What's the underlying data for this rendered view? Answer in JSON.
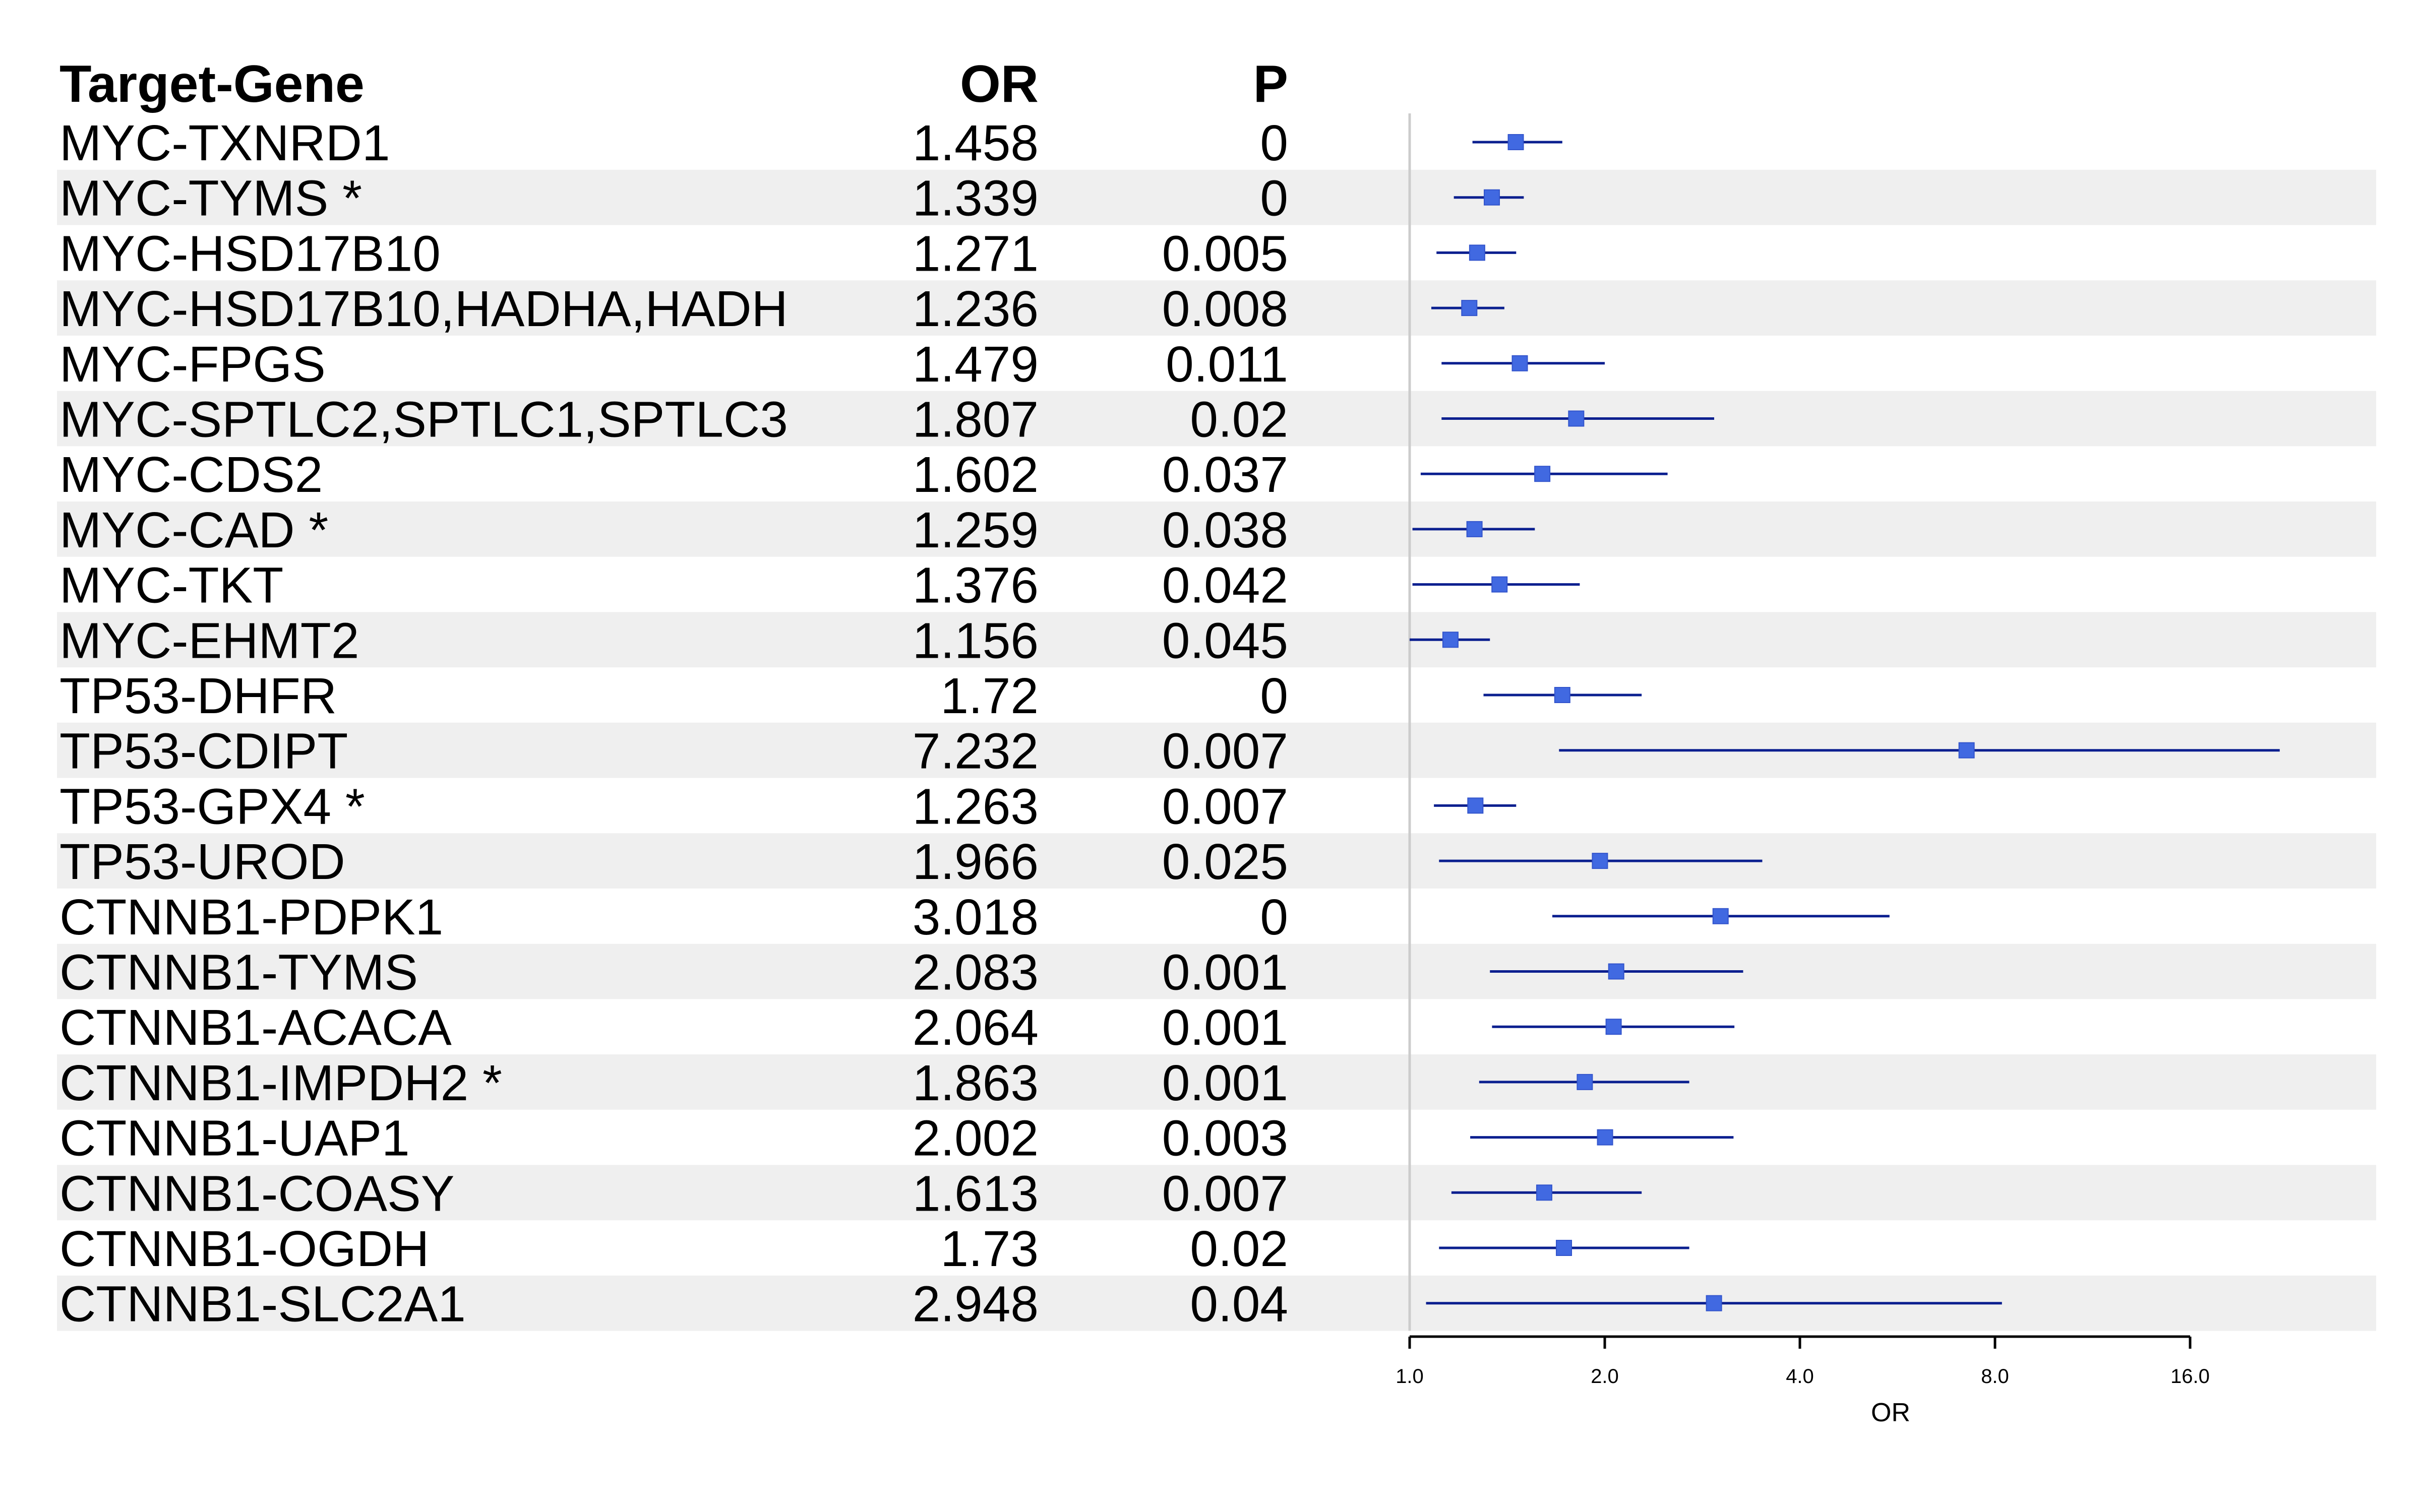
{
  "headers": {
    "label": "Target-Gene",
    "or": "OR",
    "p": "P"
  },
  "chart_data": {
    "type": "forest",
    "x_scale": "log2",
    "xlim": [
      1.0,
      22.0
    ],
    "xlabel": "OR",
    "ticks": [
      1.0,
      2.0,
      4.0,
      8.0,
      16.0
    ],
    "tick_labels": [
      "1.0",
      "2.0",
      "4.0",
      "8.0",
      "16.0"
    ],
    "reference_line": 1.0,
    "colors": {
      "point": "#4169E1",
      "ci": "#0A1F8F",
      "stripe": "#EFEFEF",
      "ref": "#CCCCCC"
    },
    "rows": [
      {
        "label": "MYC-TXNRD1",
        "or_text": "1.458",
        "p_text": "0",
        "or": 1.458,
        "lo": 1.25,
        "hi": 1.72
      },
      {
        "label": "MYC-TYMS *",
        "or_text": "1.339",
        "p_text": "0",
        "or": 1.339,
        "lo": 1.17,
        "hi": 1.5
      },
      {
        "label": "MYC-HSD17B10",
        "or_text": "1.271",
        "p_text": "0.005",
        "or": 1.271,
        "lo": 1.1,
        "hi": 1.46
      },
      {
        "label": "MYC-HSD17B10,HADHA,HADH",
        "or_text": "1.236",
        "p_text": "0.008",
        "or": 1.236,
        "lo": 1.08,
        "hi": 1.4
      },
      {
        "label": "MYC-FPGS",
        "or_text": "1.479",
        "p_text": "0.011",
        "or": 1.479,
        "lo": 1.12,
        "hi": 2.0
      },
      {
        "label": "MYC-SPTLC2,SPTLC1,SPTLC3",
        "or_text": "1.807",
        "p_text": "0.02",
        "or": 1.807,
        "lo": 1.12,
        "hi": 2.95
      },
      {
        "label": "MYC-CDS2",
        "or_text": "1.602",
        "p_text": "0.037",
        "or": 1.602,
        "lo": 1.04,
        "hi": 2.5
      },
      {
        "label": "MYC-CAD *",
        "or_text": "1.259",
        "p_text": "0.038",
        "or": 1.259,
        "lo": 1.01,
        "hi": 1.56
      },
      {
        "label": "MYC-TKT",
        "or_text": "1.376",
        "p_text": "0.042",
        "or": 1.376,
        "lo": 1.01,
        "hi": 1.83
      },
      {
        "label": "MYC-EHMT2",
        "or_text": "1.156",
        "p_text": "0.045",
        "or": 1.156,
        "lo": 1.0,
        "hi": 1.33
      },
      {
        "label": "TP53-DHFR",
        "or_text": "1.72",
        "p_text": "0",
        "or": 1.72,
        "lo": 1.3,
        "hi": 2.28
      },
      {
        "label": "TP53-CDIPT",
        "or_text": "7.232",
        "p_text": "0.007",
        "or": 7.232,
        "lo": 1.7,
        "hi": 22.0
      },
      {
        "label": "TP53-GPX4 *",
        "or_text": "1.263",
        "p_text": "0.007",
        "or": 1.263,
        "lo": 1.09,
        "hi": 1.46
      },
      {
        "label": "TP53-UROD",
        "or_text": "1.966",
        "p_text": "0.025",
        "or": 1.966,
        "lo": 1.11,
        "hi": 3.5
      },
      {
        "label": "CTNNB1-PDPK1",
        "or_text": "3.018",
        "p_text": "0",
        "or": 3.018,
        "lo": 1.66,
        "hi": 5.5
      },
      {
        "label": "CTNNB1-TYMS",
        "or_text": "2.083",
        "p_text": "0.001",
        "or": 2.083,
        "lo": 1.33,
        "hi": 3.27
      },
      {
        "label": "CTNNB1-ACACA",
        "or_text": "2.064",
        "p_text": "0.001",
        "or": 2.064,
        "lo": 1.34,
        "hi": 3.17
      },
      {
        "label": "CTNNB1-IMPDH2 *",
        "or_text": "1.863",
        "p_text": "0.001",
        "or": 1.863,
        "lo": 1.28,
        "hi": 2.7
      },
      {
        "label": "CTNNB1-UAP1",
        "or_text": "2.002",
        "p_text": "0.003",
        "or": 2.002,
        "lo": 1.24,
        "hi": 3.16
      },
      {
        "label": "CTNNB1-COASY",
        "or_text": "1.613",
        "p_text": "0.007",
        "or": 1.613,
        "lo": 1.16,
        "hi": 2.28
      },
      {
        "label": "CTNNB1-OGDH",
        "or_text": "1.73",
        "p_text": "0.02",
        "or": 1.73,
        "lo": 1.11,
        "hi": 2.7
      },
      {
        "label": "CTNNB1-SLC2A1",
        "or_text": "2.948",
        "p_text": "0.04",
        "or": 2.948,
        "lo": 1.06,
        "hi": 8.2
      }
    ]
  }
}
